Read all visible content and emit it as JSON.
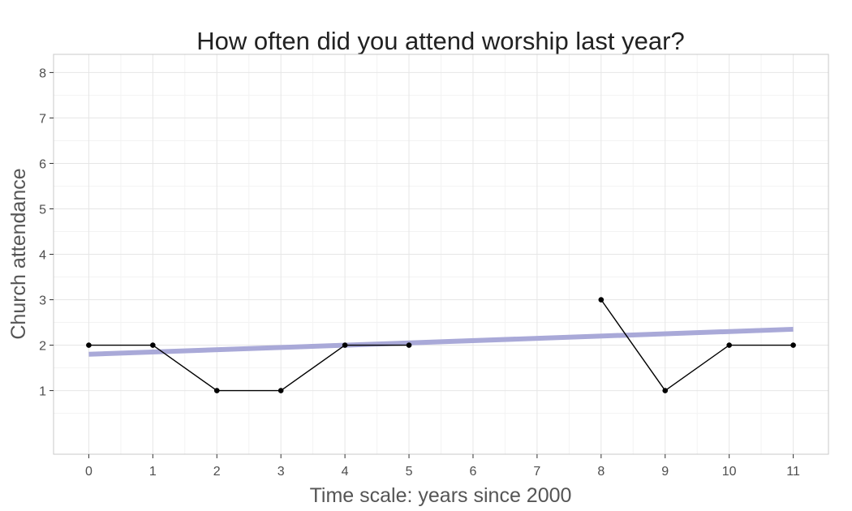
{
  "chart_data": {
    "type": "line",
    "title": "How often did you attend worship last year?",
    "xlabel": "Time scale: years since 2000",
    "ylabel": "Church attendance",
    "xlim": [
      -0.55,
      11.55
    ],
    "ylim": [
      -0.4,
      8.4
    ],
    "x_ticks": [
      0,
      1,
      2,
      3,
      4,
      5,
      6,
      7,
      8,
      9,
      10,
      11
    ],
    "y_ticks": [
      1,
      2,
      3,
      4,
      5,
      6,
      7,
      8
    ],
    "grid": true,
    "series": [
      {
        "color": "#000000",
        "points": [
          {
            "x": 0,
            "y": 2
          },
          {
            "x": 1,
            "y": 2
          },
          {
            "x": 2,
            "y": 1
          },
          {
            "x": 3,
            "y": 1
          },
          {
            "x": 4,
            "y": 2
          },
          {
            "x": 5,
            "y": 2
          },
          {
            "x": 6,
            "y": null
          },
          {
            "x": 7,
            "y": null
          },
          {
            "x": 8,
            "y": 3
          },
          {
            "x": 9,
            "y": 1
          },
          {
            "x": 10,
            "y": 2
          },
          {
            "x": 11,
            "y": 2
          }
        ]
      }
    ],
    "trend_line": {
      "color": "#a9a9d8",
      "start": {
        "x": 0,
        "y": 1.8
      },
      "end": {
        "x": 11,
        "y": 2.35
      }
    }
  }
}
